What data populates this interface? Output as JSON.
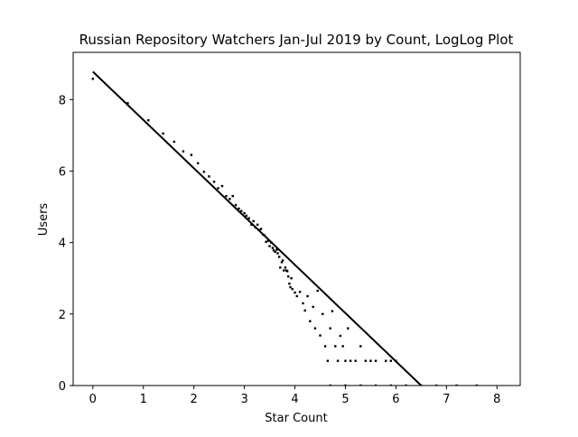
{
  "chart_data": {
    "type": "scatter",
    "title": "Russian Repository Watchers Jan-Jul 2019 by Count, LogLog Plot",
    "x_label": "Star Count",
    "y_label": "Users",
    "xlim": [
      -0.39,
      8.46
    ],
    "ylim": [
      0,
      9.32
    ],
    "xticks": [
      0,
      1,
      2,
      3,
      4,
      5,
      6,
      7,
      8
    ],
    "yticks": [
      0,
      2,
      4,
      6,
      8
    ],
    "color": "#000000",
    "points": {
      "x": [
        0,
        0.69,
        1.1,
        1.39,
        1.61,
        1.79,
        1.95,
        2.08,
        2.2,
        2.3,
        2.4,
        2.48,
        2.56,
        2.64,
        2.71,
        2.77,
        2.83,
        2.89,
        2.94,
        3.0,
        3.04,
        3.09,
        3.14,
        3.18,
        3.22,
        3.26,
        3.3,
        3.33,
        3.37,
        3.4,
        3.43,
        3.47,
        3.5,
        3.53,
        3.56,
        3.58,
        3.61,
        3.64,
        3.66,
        3.69,
        3.71,
        3.74,
        3.76,
        3.78,
        3.81,
        3.83,
        3.85,
        3.87,
        3.89,
        3.91,
        3.93,
        3.95,
        4.0,
        4.04,
        4.1,
        4.16,
        4.2,
        4.25,
        4.3,
        4.36,
        4.4,
        4.45,
        4.5,
        4.55,
        4.6,
        4.65,
        4.7,
        4.74,
        4.8,
        4.85,
        4.9,
        4.95,
        5.0,
        5.05,
        5.1,
        5.2,
        5.3,
        5.4,
        5.5,
        5.6,
        5.8,
        5.9,
        6.0,
        4.7,
        5.0,
        5.3,
        5.6,
        5.9,
        6.2,
        6.5,
        6.8,
        7.2,
        7.6
      ],
      "y": [
        8.58,
        7.9,
        7.42,
        7.05,
        6.82,
        6.55,
        6.45,
        6.22,
        5.98,
        5.85,
        5.7,
        5.52,
        5.58,
        5.3,
        5.22,
        5.3,
        5.05,
        4.95,
        4.88,
        4.82,
        4.75,
        4.68,
        4.5,
        4.6,
        4.42,
        4.5,
        4.35,
        4.38,
        4.22,
        4.2,
        4.02,
        4.05,
        3.9,
        4.0,
        3.85,
        3.78,
        3.74,
        3.8,
        3.7,
        3.6,
        3.3,
        3.45,
        3.5,
        3.22,
        3.3,
        3.22,
        3.2,
        3.05,
        2.85,
        2.75,
        3.0,
        2.7,
        2.6,
        2.5,
        2.62,
        2.3,
        2.1,
        2.5,
        1.8,
        2.2,
        1.6,
        2.65,
        1.4,
        2.0,
        1.1,
        0.69,
        1.6,
        2.08,
        1.1,
        0.69,
        1.39,
        1.1,
        0.69,
        1.6,
        0.69,
        0.69,
        1.1,
        0.69,
        0.69,
        0.69,
        0.69,
        0.69,
        0.69,
        0,
        0,
        0,
        0,
        0,
        0,
        0,
        0,
        0,
        0
      ]
    },
    "fit": {
      "x": [
        0,
        6.5
      ],
      "y": [
        8.78,
        0
      ]
    }
  }
}
